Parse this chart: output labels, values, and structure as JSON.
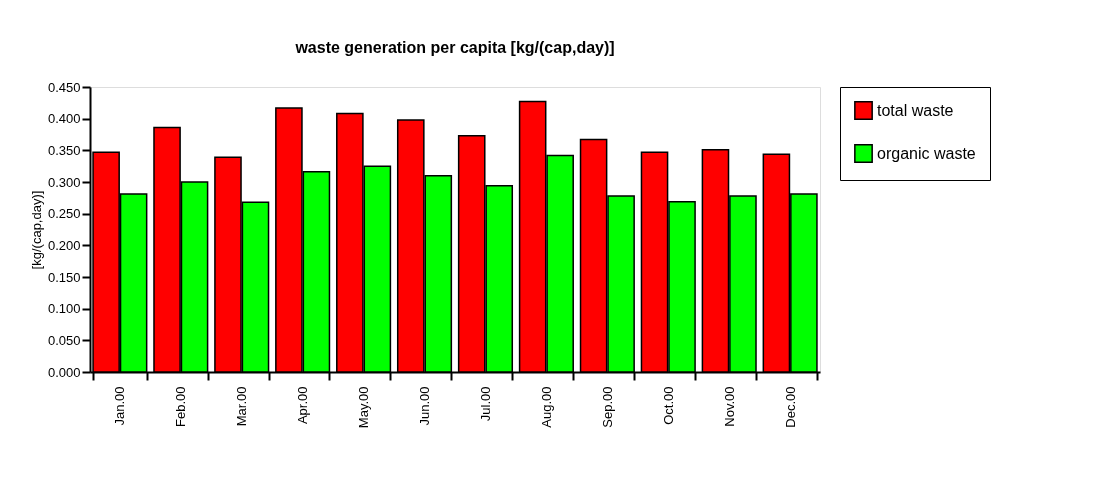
{
  "chart_data": {
    "type": "bar",
    "title": "waste generation per capita [kg/(cap,day)]",
    "ylabel": "[kg/(cap,day)]",
    "categories": [
      "Jan.00",
      "Feb.00",
      "Mar.00",
      "Apr.00",
      "May.00",
      "Jun.00",
      "Jul.00",
      "Aug.00",
      "Sep.00",
      "Oct.00",
      "Nov.00",
      "Dec.00"
    ],
    "series": [
      {
        "name": "total waste",
        "color": "#ff0000",
        "values": [
          0.347,
          0.386,
          0.339,
          0.417,
          0.408,
          0.398,
          0.373,
          0.427,
          0.367,
          0.347,
          0.351,
          0.344
        ]
      },
      {
        "name": "organic waste",
        "color": "#00ff00",
        "values": [
          0.281,
          0.3,
          0.268,
          0.316,
          0.325,
          0.31,
          0.294,
          0.342,
          0.278,
          0.269,
          0.278,
          0.281
        ]
      }
    ],
    "ylim": [
      0,
      0.45
    ],
    "yticks": [
      {
        "value": 0,
        "label": "0.000"
      },
      {
        "value": 0.05,
        "label": "0.050"
      },
      {
        "value": 0.1,
        "label": "0.100"
      },
      {
        "value": 0.15,
        "label": "0.150"
      },
      {
        "value": 0.2,
        "label": "0.200"
      },
      {
        "value": 0.25,
        "label": "0.250"
      },
      {
        "value": 0.3,
        "label": "0.300"
      },
      {
        "value": 0.35,
        "label": "0.350"
      },
      {
        "value": 0.4,
        "label": "0.400"
      },
      {
        "value": 0.45,
        "label": "0.450"
      }
    ],
    "grid": false,
    "legend": "right"
  }
}
